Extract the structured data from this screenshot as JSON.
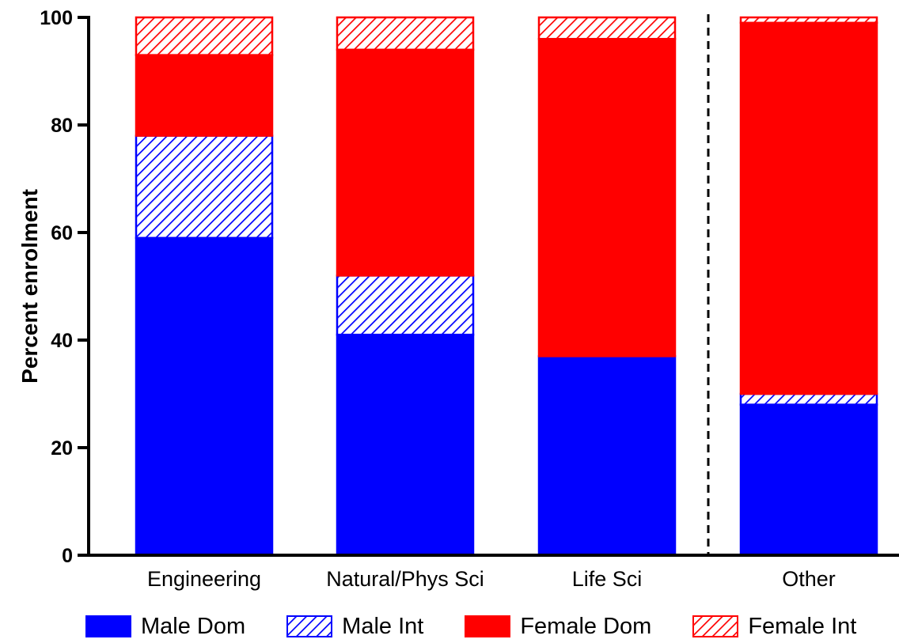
{
  "chart_data": {
    "type": "bar",
    "stacked": true,
    "categories": [
      "Engineering",
      "Natural/Phys Sci",
      "Life Sci",
      "Other"
    ],
    "series": [
      {
        "name": "Male Dom",
        "color": "#0000ff",
        "pattern": "solid",
        "values": [
          59,
          41,
          37,
          28
        ]
      },
      {
        "name": "Male Int",
        "color": "#0000ff",
        "pattern": "hatched",
        "values": [
          19,
          11,
          0,
          2
        ]
      },
      {
        "name": "Female Dom",
        "color": "#ff0000",
        "pattern": "solid",
        "values": [
          15,
          42,
          59,
          69
        ]
      },
      {
        "name": "Female Int",
        "color": "#ff0000",
        "pattern": "hatched",
        "values": [
          7,
          6,
          4,
          1
        ]
      }
    ],
    "ylabel": "Percent enrolment",
    "xlabel": "",
    "ylim": [
      0,
      100
    ],
    "yticks": [
      "0",
      "20",
      "40",
      "60",
      "80",
      "100"
    ],
    "grid": false,
    "legend_position": "bottom",
    "separator": "dashed line between Life Sci and Other"
  }
}
